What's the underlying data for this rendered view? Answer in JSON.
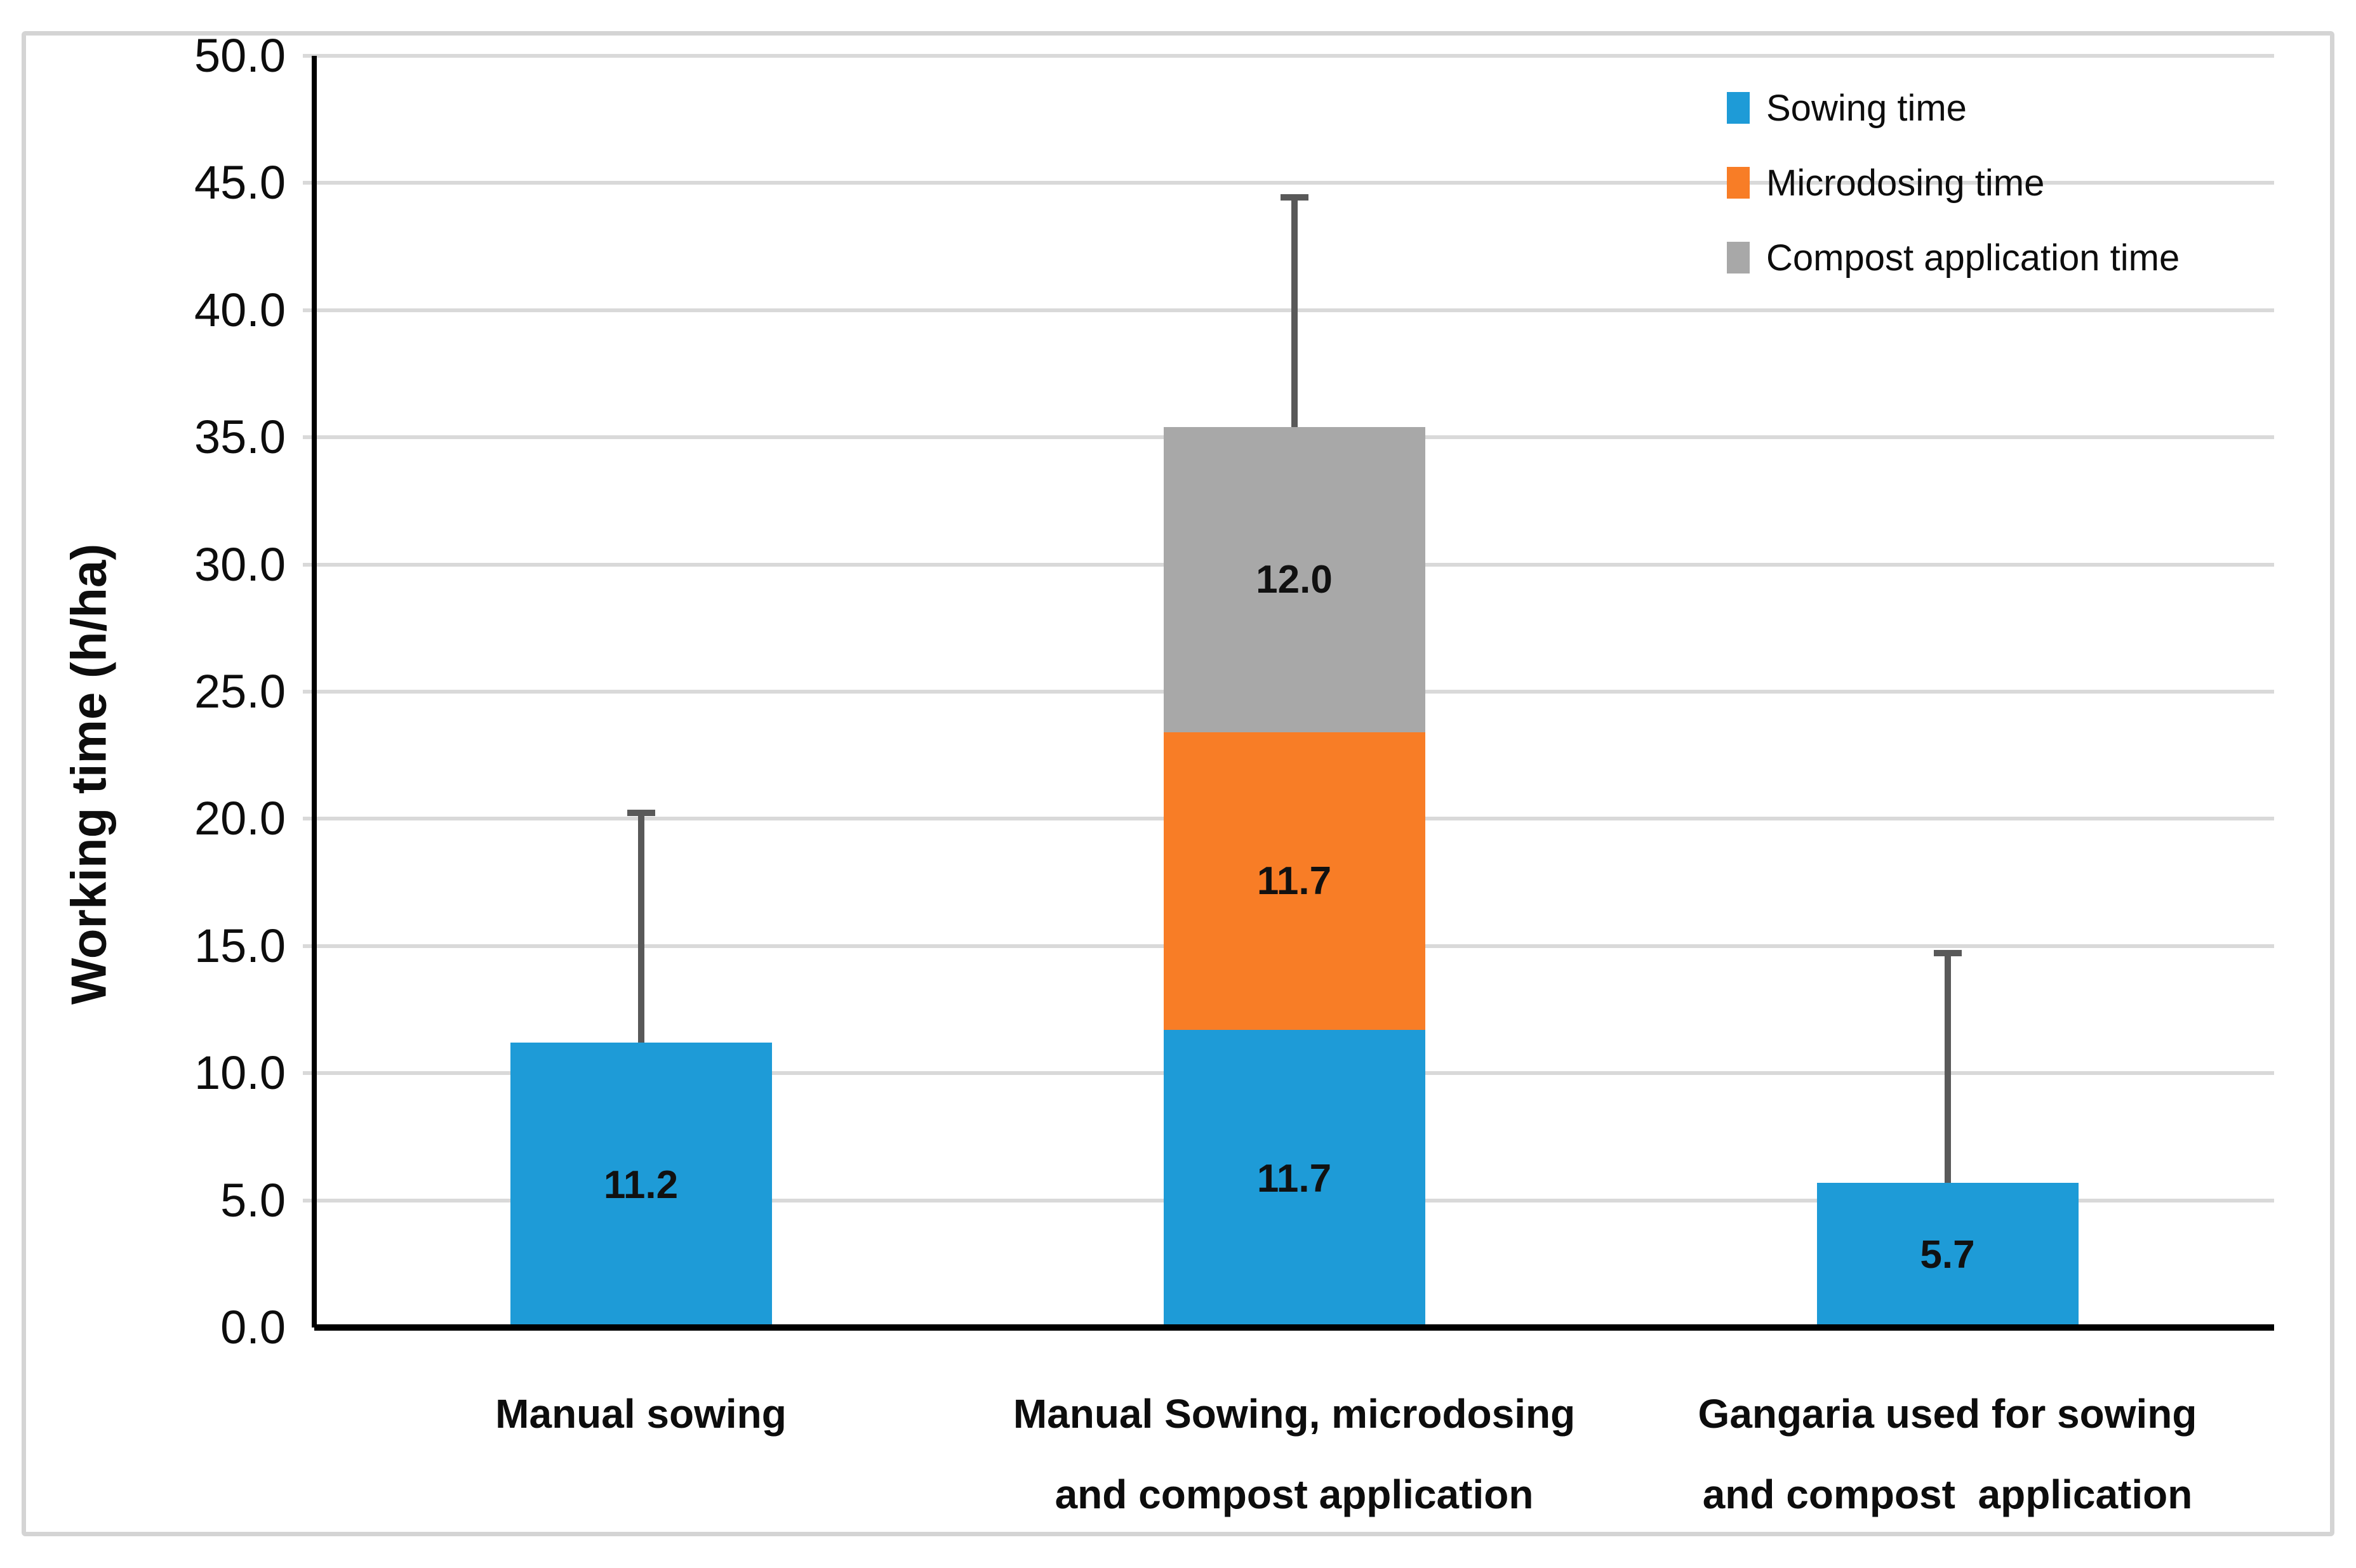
{
  "frame": {
    "border_color": "#d4d4d4",
    "background": "#ffffff"
  },
  "chart_data": {
    "type": "bar",
    "stacked": true,
    "title": "",
    "xlabel": "",
    "ylabel": "Working time (h/ha)",
    "ylim": [
      0,
      50
    ],
    "ytick_step": 5,
    "yticks": [
      "0.0",
      "5.0",
      "10.0",
      "15.0",
      "20.0",
      "25.0",
      "30.0",
      "35.0",
      "40.0",
      "45.0",
      "50.0"
    ],
    "grid": true,
    "gridline_color": "#d9d9d9",
    "axis_color": "#000000",
    "legend_position": "top-right",
    "categories": [
      {
        "lines": [
          "Manual sowing"
        ]
      },
      {
        "lines": [
          "Manual Sowing, microdosing",
          "and compost application"
        ]
      },
      {
        "lines": [
          "Gangaria used for sowing",
          "and compost  application"
        ]
      }
    ],
    "series": [
      {
        "name": "Sowing time",
        "color": "#1e9bd7",
        "values": [
          11.2,
          11.7,
          5.7
        ]
      },
      {
        "name": "Microdosing time",
        "color": "#f87d26",
        "values": [
          0,
          11.7,
          0
        ]
      },
      {
        "name": "Compost application time",
        "color": "#a8a8a8",
        "values": [
          0,
          12.0,
          0
        ]
      }
    ],
    "data_labels": [
      [
        "11.2",
        "11.7",
        "5.7"
      ],
      [
        "",
        "11.7",
        ""
      ],
      [
        "",
        "12.0",
        ""
      ]
    ],
    "error_bars": {
      "color": "#595959",
      "tops": [
        20.3,
        44.5,
        14.8
      ]
    }
  }
}
